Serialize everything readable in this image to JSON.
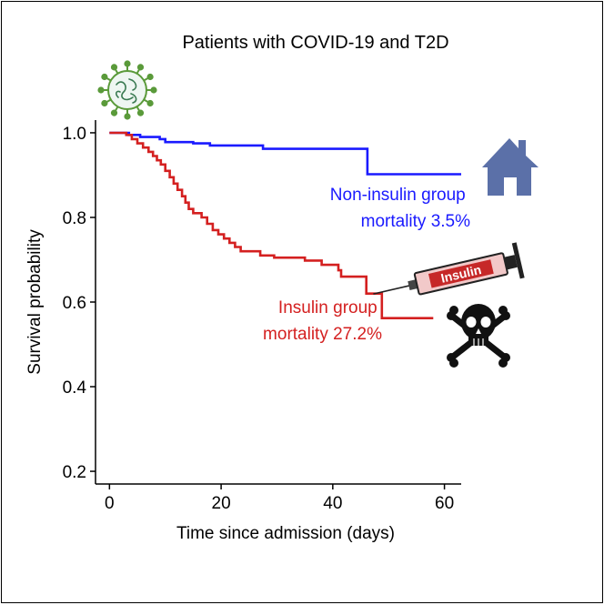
{
  "chart_data": {
    "type": "line",
    "title": "Patients with COVID-19 and T2D",
    "xlabel": "Time since admission (days)",
    "ylabel": "Survival probability",
    "xlim": [
      -2.5,
      63
    ],
    "ylim": [
      0.17,
      1.03
    ],
    "x_ticks": [
      0,
      20,
      40,
      60
    ],
    "x_tick_labels": [
      "0",
      "20",
      "40",
      "60"
    ],
    "y_ticks": [
      0.2,
      0.4,
      0.6,
      0.8,
      1.0
    ],
    "y_tick_labels": [
      "0.2",
      "0.4",
      "0.6",
      "0.8",
      "1.0"
    ],
    "grid": false,
    "series": [
      {
        "name": "Non-insulin group",
        "color": "#1a1aff",
        "steps": [
          [
            0,
            1.0
          ],
          [
            2.5,
            1.0
          ],
          [
            3.5,
            0.995
          ],
          [
            5.5,
            0.99
          ],
          [
            9,
            0.985
          ],
          [
            10,
            0.978
          ],
          [
            15,
            0.975
          ],
          [
            18,
            0.97
          ],
          [
            27.5,
            0.962
          ],
          [
            46.2,
            0.962
          ],
          [
            46.2,
            0.902
          ],
          [
            63,
            0.902
          ]
        ]
      },
      {
        "name": "Insulin group",
        "color": "#d42020",
        "steps": [
          [
            0,
            1.0
          ],
          [
            2.5,
            1.0
          ],
          [
            3,
            0.995
          ],
          [
            4,
            0.985
          ],
          [
            5,
            0.975
          ],
          [
            6,
            0.965
          ],
          [
            7,
            0.955
          ],
          [
            7.8,
            0.945
          ],
          [
            8.5,
            0.935
          ],
          [
            9.2,
            0.925
          ],
          [
            10,
            0.91
          ],
          [
            10.8,
            0.895
          ],
          [
            11.5,
            0.88
          ],
          [
            12.2,
            0.865
          ],
          [
            13,
            0.85
          ],
          [
            13.6,
            0.835
          ],
          [
            14.2,
            0.82
          ],
          [
            15,
            0.81
          ],
          [
            16.5,
            0.8
          ],
          [
            17.5,
            0.785
          ],
          [
            18.5,
            0.77
          ],
          [
            19.5,
            0.76
          ],
          [
            20.5,
            0.75
          ],
          [
            21.5,
            0.74
          ],
          [
            22.5,
            0.73
          ],
          [
            23.5,
            0.72
          ],
          [
            27,
            0.71
          ],
          [
            29.5,
            0.705
          ],
          [
            35,
            0.698
          ],
          [
            38,
            0.688
          ],
          [
            41,
            0.675
          ],
          [
            41.5,
            0.66
          ],
          [
            46,
            0.66
          ],
          [
            46,
            0.62
          ],
          [
            48.8,
            0.62
          ],
          [
            48.8,
            0.562
          ],
          [
            58,
            0.562
          ]
        ]
      }
    ],
    "annotations": [
      {
        "key": "non_insulin",
        "lines": [
          "Non-insulin group",
          "mortality 3.5%"
        ],
        "color": "#1a1aff"
      },
      {
        "key": "insulin",
        "lines": [
          "Insulin group",
          "mortality 27.2%"
        ],
        "color": "#d42020"
      }
    ],
    "syringe_label": "Insulin"
  },
  "colors": {
    "virus_green": "#5a9a3a",
    "virus_dark": "#3a7a52",
    "house": "#5b70a8",
    "skull": "#111111",
    "syringe_barrel": "#f2c9c9",
    "syringe_label_bg": "#c62828"
  },
  "icons": [
    "virus-icon",
    "house-icon",
    "syringe-icon",
    "skull-crossbones-icon"
  ]
}
